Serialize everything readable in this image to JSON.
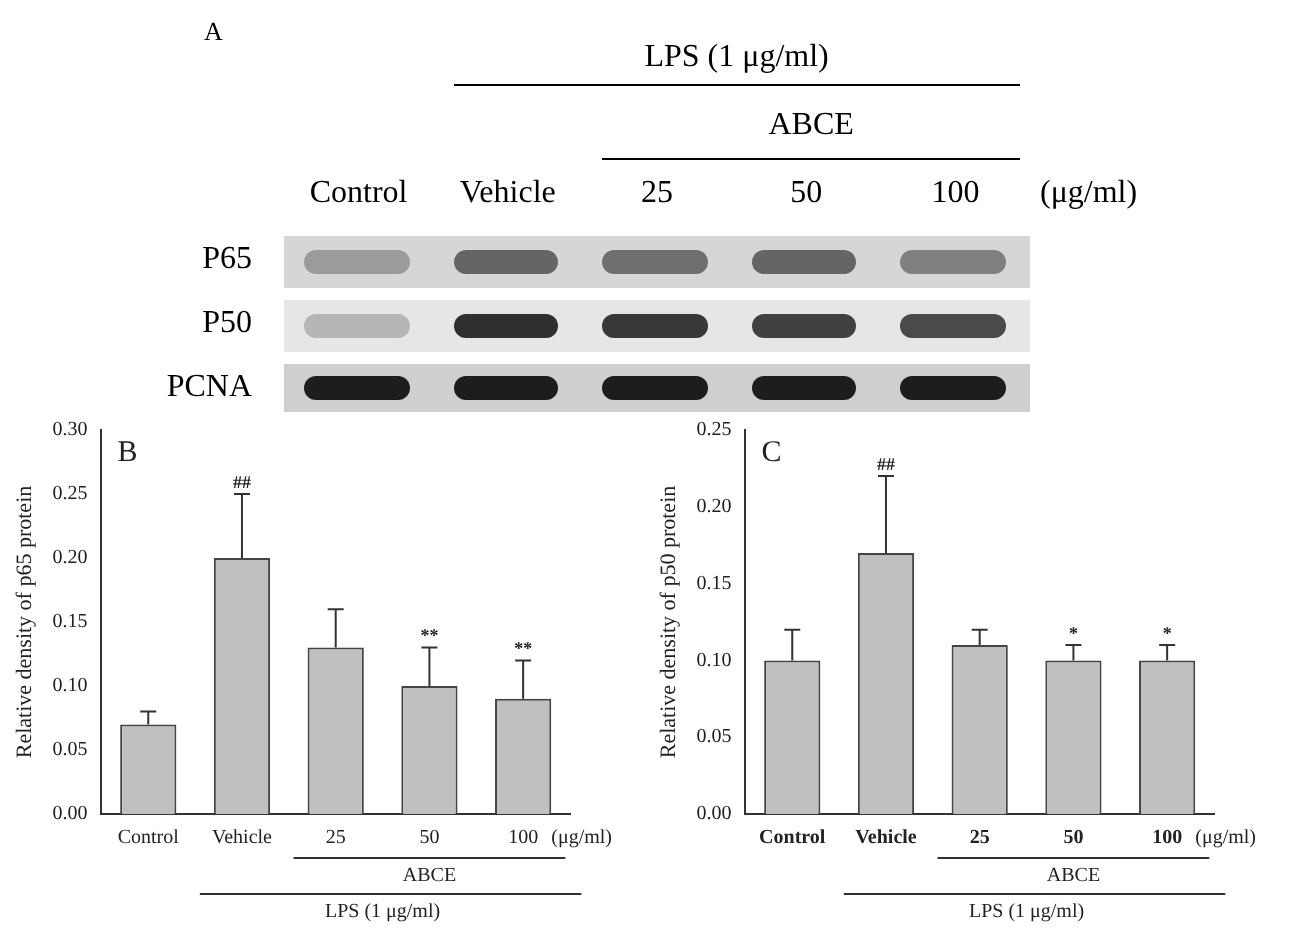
{
  "chart_data": [
    {
      "type": "other",
      "title": "A",
      "categories": [
        "Control",
        "Vehicle",
        "25",
        "50",
        "100"
      ],
      "y_categories": [
        "P65",
        "P50",
        "PCNA"
      ],
      "annotations": [
        "LPS (1 μg/ml)",
        "ABCE",
        "(μg/ml)"
      ]
    },
    {
      "type": "bar",
      "title": "B",
      "ylabel": "Relative density of p65 protein",
      "categories": [
        "Control",
        "Vehicle",
        "25",
        "50",
        "100"
      ],
      "values": [
        0.07,
        0.2,
        0.13,
        0.1,
        0.09
      ],
      "color": "#c0c0c0",
      "errors": [
        [
          0.07,
          0.08
        ],
        [
          0.2,
          0.25
        ],
        [
          0.13,
          0.16
        ],
        [
          0.1,
          0.13
        ],
        [
          0.09,
          0.12
        ]
      ],
      "ylim": [
        0,
        0.3
      ],
      "yticks": [
        {
          "value": 0,
          "label": "0.00"
        },
        {
          "value": 0.05,
          "label": "0.05"
        },
        {
          "value": 0.1,
          "label": "0.10"
        },
        {
          "value": 0.15,
          "label": "0.15"
        },
        {
          "value": 0.2,
          "label": "0.20"
        },
        {
          "value": 0.25,
          "label": "0.25"
        },
        {
          "value": 0.3,
          "label": "0.30"
        }
      ],
      "grid": false,
      "legend": false,
      "annotations": [
        {
          "text": "##",
          "x": "Vehicle",
          "y": 0.25
        },
        {
          "text": "**",
          "x": "50",
          "y": 0.13
        },
        {
          "text": "**",
          "x": "100",
          "y": 0.12
        },
        "(μg/ml)",
        "ABCE",
        "LPS (1 μg/ml)"
      ]
    },
    {
      "type": "bar",
      "title": "C",
      "ylabel": "Relative density of p50 protein",
      "categories": [
        "Control",
        "Vehicle",
        "25",
        "50",
        "100"
      ],
      "values": [
        0.1,
        0.17,
        0.11,
        0.1,
        0.1
      ],
      "color": "#c0c0c0",
      "errors": [
        [
          0.1,
          0.12
        ],
        [
          0.17,
          0.22
        ],
        [
          0.11,
          0.12
        ],
        [
          0.1,
          0.11
        ],
        [
          0.1,
          0.11
        ]
      ],
      "ylim": [
        0,
        0.25
      ],
      "yticks": [
        {
          "value": 0,
          "label": "0.00"
        },
        {
          "value": 0.05,
          "label": "0.05"
        },
        {
          "value": 0.1,
          "label": "0.10"
        },
        {
          "value": 0.15,
          "label": "0.15"
        },
        {
          "value": 0.2,
          "label": "0.20"
        },
        {
          "value": 0.25,
          "label": "0.25"
        }
      ],
      "grid": false,
      "legend": false,
      "annotations": [
        {
          "text": "##",
          "x": "Vehicle",
          "y": 0.22
        },
        {
          "text": "*",
          "x": "50",
          "y": 0.11
        },
        {
          "text": "*",
          "x": "100",
          "y": 0.11
        },
        "(μg/ml)",
        "ABCE",
        "LPS (1 μg/ml)"
      ]
    }
  ]
}
